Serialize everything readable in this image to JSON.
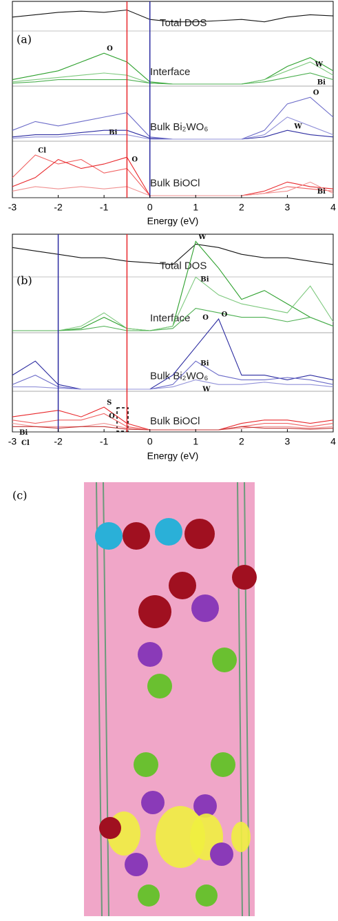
{
  "chart_data": [
    {
      "type": "line",
      "panel_label": "(a)",
      "xlabel": "Energy (eV)",
      "xlim": [
        -3,
        4
      ],
      "xticks": [
        -3,
        -2,
        -1,
        0,
        1,
        2,
        3,
        4
      ],
      "x": [
        -3,
        -2.5,
        -2,
        -1.5,
        -1,
        -0.5,
        0,
        0.5,
        1,
        1.5,
        2,
        2.5,
        3,
        3.5,
        4
      ],
      "vlines": [
        {
          "value": -0.5,
          "color": "#e8262a"
        },
        {
          "value": 0,
          "color": "#2b2ba0"
        }
      ],
      "rows": [
        {
          "label": "Total DOS",
          "ylim": [
            0,
            1
          ],
          "series": [
            {
              "color": "#111111",
              "values": [
                0.5,
                0.6,
                0.7,
                0.75,
                0.7,
                0.8,
                0.4,
                0.3,
                0.3,
                0.35,
                0.4,
                0.3,
                0.5,
                0.6,
                0.55
              ]
            }
          ]
        },
        {
          "label": "Interface",
          "ylim": [
            0,
            1
          ],
          "series": [
            {
              "name": "O",
              "color": "#2ca02c",
              "values": [
                0.1,
                0.2,
                0.3,
                0.5,
                0.7,
                0.5,
                0.05,
                0,
                0,
                0,
                0,
                0.1,
                0.4,
                0.6,
                0.3
              ]
            },
            {
              "name": "W",
              "color": "#7cc87c",
              "values": [
                0.05,
                0.1,
                0.15,
                0.2,
                0.25,
                0.2,
                0.02,
                0,
                0,
                0,
                0,
                0.1,
                0.3,
                0.5,
                0.2
              ]
            },
            {
              "name": "Bi",
              "color": "#4caf50",
              "values": [
                0.02,
                0.05,
                0.1,
                0.1,
                0.1,
                0.1,
                0.02,
                0,
                0,
                0,
                0,
                0.05,
                0.15,
                0.25,
                0.1
              ]
            }
          ]
        },
        {
          "label": "Bulk Bi₂WO₆",
          "ylim": [
            0,
            1
          ],
          "series": [
            {
              "name": "O",
              "color": "#6a6ac8",
              "values": [
                0.2,
                0.4,
                0.3,
                0.4,
                0.5,
                0.6,
                0.05,
                0,
                0,
                0,
                0,
                0.2,
                0.8,
                0.95,
                0.5
              ]
            },
            {
              "name": "Bi",
              "color": "#2b2ba0",
              "values": [
                0.05,
                0.1,
                0.1,
                0.15,
                0.2,
                0.2,
                0.02,
                0,
                0,
                0,
                0,
                0.05,
                0.2,
                0.1,
                0.05
              ]
            },
            {
              "name": "W",
              "color": "#9090d8",
              "values": [
                0.02,
                0.05,
                0.05,
                0.1,
                0.1,
                0.1,
                0,
                0,
                0,
                0,
                0,
                0.1,
                0.5,
                0.3,
                0.1
              ]
            }
          ]
        },
        {
          "label": "Bulk BiOCl",
          "ylim": [
            0,
            1
          ],
          "series": [
            {
              "name": "Cl",
              "color": "#f06060",
              "values": [
                0.4,
                0.9,
                0.7,
                0.8,
                0.5,
                0.6,
                0,
                0,
                0,
                0,
                0,
                0.05,
                0.2,
                0.15,
                0.1
              ]
            },
            {
              "name": "O",
              "color": "#e8262a",
              "values": [
                0.2,
                0.4,
                0.8,
                0.6,
                0.7,
                0.85,
                0,
                0,
                0,
                0,
                0,
                0.1,
                0.3,
                0.2,
                0.15
              ]
            },
            {
              "name": "Bi",
              "color": "#f09090",
              "values": [
                0.1,
                0.2,
                0.15,
                0.2,
                0.15,
                0.2,
                0,
                0,
                0,
                0,
                0,
                0.05,
                0.1,
                0.3,
                0.05
              ]
            }
          ]
        }
      ]
    },
    {
      "type": "line",
      "panel_label": "(b)",
      "xlabel": "Energy (eV)",
      "xlim": [
        -3,
        4
      ],
      "xticks": [
        -3,
        -2,
        -1,
        0,
        1,
        2,
        3,
        4
      ],
      "x": [
        -3,
        -2.5,
        -2,
        -1.5,
        -1,
        -0.5,
        0,
        0.5,
        1,
        1.5,
        2,
        2.5,
        3,
        3.5,
        4
      ],
      "vlines": [
        {
          "value": -2,
          "color": "#2b2ba0"
        },
        {
          "value": -0.5,
          "color": "#e8262a"
        }
      ],
      "rows": [
        {
          "label": "Total DOS",
          "ylim": [
            0,
            1
          ],
          "series": [
            {
              "color": "#111111",
              "values": [
                0.8,
                0.7,
                0.6,
                0.5,
                0.5,
                0.4,
                0.35,
                0.3,
                0.9,
                0.8,
                0.6,
                0.5,
                0.5,
                0.4,
                0.3
              ]
            }
          ]
        },
        {
          "label": "Interface",
          "ylim": [
            0,
            1
          ],
          "series": [
            {
              "name": "W",
              "color": "#2ca02c",
              "values": [
                0,
                0,
                0,
                0.05,
                0.3,
                0.05,
                0,
                0.1,
                2.0,
                1.4,
                0.7,
                0.9,
                0.6,
                0.3,
                0.1
              ]
            },
            {
              "name": "Bi",
              "color": "#7cc87c",
              "values": [
                0,
                0,
                0,
                0.1,
                0.4,
                0.05,
                0,
                0.1,
                1.2,
                0.8,
                0.6,
                0.5,
                0.4,
                1.0,
                0.2
              ]
            },
            {
              "name": "O",
              "color": "#4caf50",
              "values": [
                0,
                0,
                0,
                0.02,
                0.1,
                0,
                0,
                0.05,
                0.5,
                0.4,
                0.3,
                0.3,
                0.2,
                0.3,
                0.1
              ]
            }
          ]
        },
        {
          "label": "Bulk Bi₂WO₆",
          "ylim": [
            0,
            1
          ],
          "series": [
            {
              "name": "O",
              "color": "#2b2ba0",
              "values": [
                0.3,
                0.6,
                0.1,
                0,
                0,
                0,
                0,
                0.3,
                0.9,
                1.5,
                0.3,
                0.3,
                0.2,
                0.3,
                0.2
              ]
            },
            {
              "name": "Bi",
              "color": "#6a6ac8",
              "values": [
                0.1,
                0.3,
                0.05,
                0,
                0,
                0,
                0,
                0.1,
                0.6,
                0.3,
                0.2,
                0.2,
                0.25,
                0.2,
                0.1
              ]
            },
            {
              "name": "W",
              "color": "#9090d8",
              "values": [
                0.05,
                0.05,
                0.02,
                0,
                0,
                0,
                0,
                0.05,
                0.2,
                0.1,
                0.1,
                0.15,
                0.1,
                0.1,
                0.05
              ]
            }
          ]
        },
        {
          "label": "Bulk BiOCl",
          "ylim": [
            0,
            1
          ],
          "series": [
            {
              "name": "S",
              "color": "#e8262a",
              "values": [
                0.4,
                0.5,
                0.6,
                0.4,
                0.7,
                0.2,
                0,
                0,
                0,
                0,
                0.2,
                0.3,
                0.3,
                0.2,
                0.3
              ]
            },
            {
              "name": "O",
              "color": "#f06060",
              "values": [
                0.3,
                0.2,
                0.3,
                0.3,
                0.5,
                0.1,
                0,
                0,
                0,
                0,
                0.1,
                0.2,
                0.2,
                0.1,
                0.2
              ]
            },
            {
              "name": "Bi",
              "color": "#f09090",
              "values": [
                0.2,
                0.1,
                0.1,
                0.1,
                0.2,
                0.05,
                0,
                0,
                0,
                0,
                0.05,
                0.1,
                0.1,
                0.05,
                0.1
              ]
            },
            {
              "name": "Cl",
              "color": "#c03030",
              "values": [
                0.1,
                0.1,
                0.05,
                0.1,
                0.1,
                0.02,
                0,
                0,
                0,
                0,
                0.1,
                0.05,
                0.05,
                0.02,
                0.05
              ]
            }
          ]
        }
      ]
    }
  ],
  "panel_c_label": "(c)"
}
